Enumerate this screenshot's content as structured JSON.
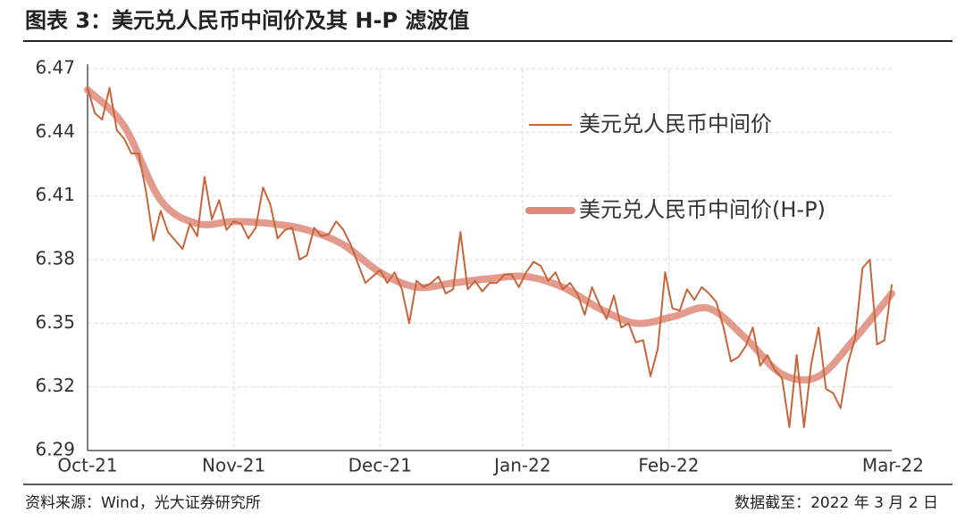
{
  "chart_data": {
    "type": "line",
    "title": "图表 3：美元兑人民币中间价及其 H-P 滤波值",
    "source": "资料来源：Wind，光大证券研究所",
    "date_note": "数据截至：2022 年 3 月 2 日",
    "xlim": [
      0,
      110
    ],
    "xticks": [
      {
        "value": 0,
        "label": "Oct-21"
      },
      {
        "value": 20,
        "label": "Nov-21"
      },
      {
        "value": 40,
        "label": "Dec-21"
      },
      {
        "value": 59.5,
        "label": "Jan-22"
      },
      {
        "value": 79.5,
        "label": "Feb-22"
      },
      {
        "value": 110,
        "label": "Mar-22"
      }
    ],
    "ylim": [
      6.29,
      6.47
    ],
    "yticks": [
      6.29,
      6.32,
      6.35,
      6.38,
      6.41,
      6.44,
      6.47
    ],
    "grid": true,
    "series": [
      {
        "name": "美元兑人民币中间价",
        "color": "#c9653b",
        "width": 2,
        "values": [
          6.461,
          6.449,
          6.446,
          6.461,
          6.441,
          6.437,
          6.43,
          6.43,
          6.412,
          6.389,
          6.403,
          6.393,
          6.389,
          6.385,
          6.397,
          6.391,
          6.419,
          6.399,
          6.408,
          6.394,
          6.398,
          6.397,
          6.39,
          6.395,
          6.414,
          6.406,
          6.39,
          6.394,
          6.395,
          6.38,
          6.382,
          6.395,
          6.391,
          6.392,
          6.398,
          6.394,
          6.387,
          6.378,
          6.369,
          6.372,
          6.375,
          6.369,
          6.374,
          6.366,
          6.35,
          6.37,
          6.367,
          6.369,
          6.372,
          6.364,
          6.366,
          6.393,
          6.366,
          6.37,
          6.365,
          6.369,
          6.369,
          6.373,
          6.373,
          6.367,
          6.374,
          6.379,
          6.377,
          6.37,
          6.374,
          6.366,
          6.369,
          6.364,
          6.354,
          6.367,
          6.359,
          6.352,
          6.363,
          6.348,
          6.35,
          6.341,
          6.342,
          6.325,
          6.338,
          6.374,
          6.357,
          6.356,
          6.366,
          6.361,
          6.367,
          6.364,
          6.36,
          6.348,
          6.332,
          6.334,
          6.339,
          6.348,
          6.33,
          6.335,
          6.328,
          6.324,
          6.301,
          6.335,
          6.301,
          6.331,
          6.348,
          6.319,
          6.317,
          6.31,
          6.331,
          6.343,
          6.376,
          6.38,
          6.34,
          6.342,
          6.368
        ]
      },
      {
        "name": "美元兑人民币中间价(H-P)",
        "color": "#dd8a78",
        "width": 8,
        "x": [
          0,
          5,
          10,
          15,
          20,
          25,
          30,
          35,
          40,
          45,
          50,
          55,
          60,
          65,
          70,
          75,
          80,
          85,
          90,
          95,
          100,
          105,
          110
        ],
        "values": [
          6.46,
          6.443,
          6.408,
          6.397,
          6.398,
          6.397,
          6.394,
          6.387,
          6.374,
          6.367,
          6.369,
          6.371,
          6.372,
          6.367,
          6.357,
          6.35,
          6.353,
          6.357,
          6.343,
          6.326,
          6.325,
          6.343,
          6.364
        ]
      }
    ]
  }
}
